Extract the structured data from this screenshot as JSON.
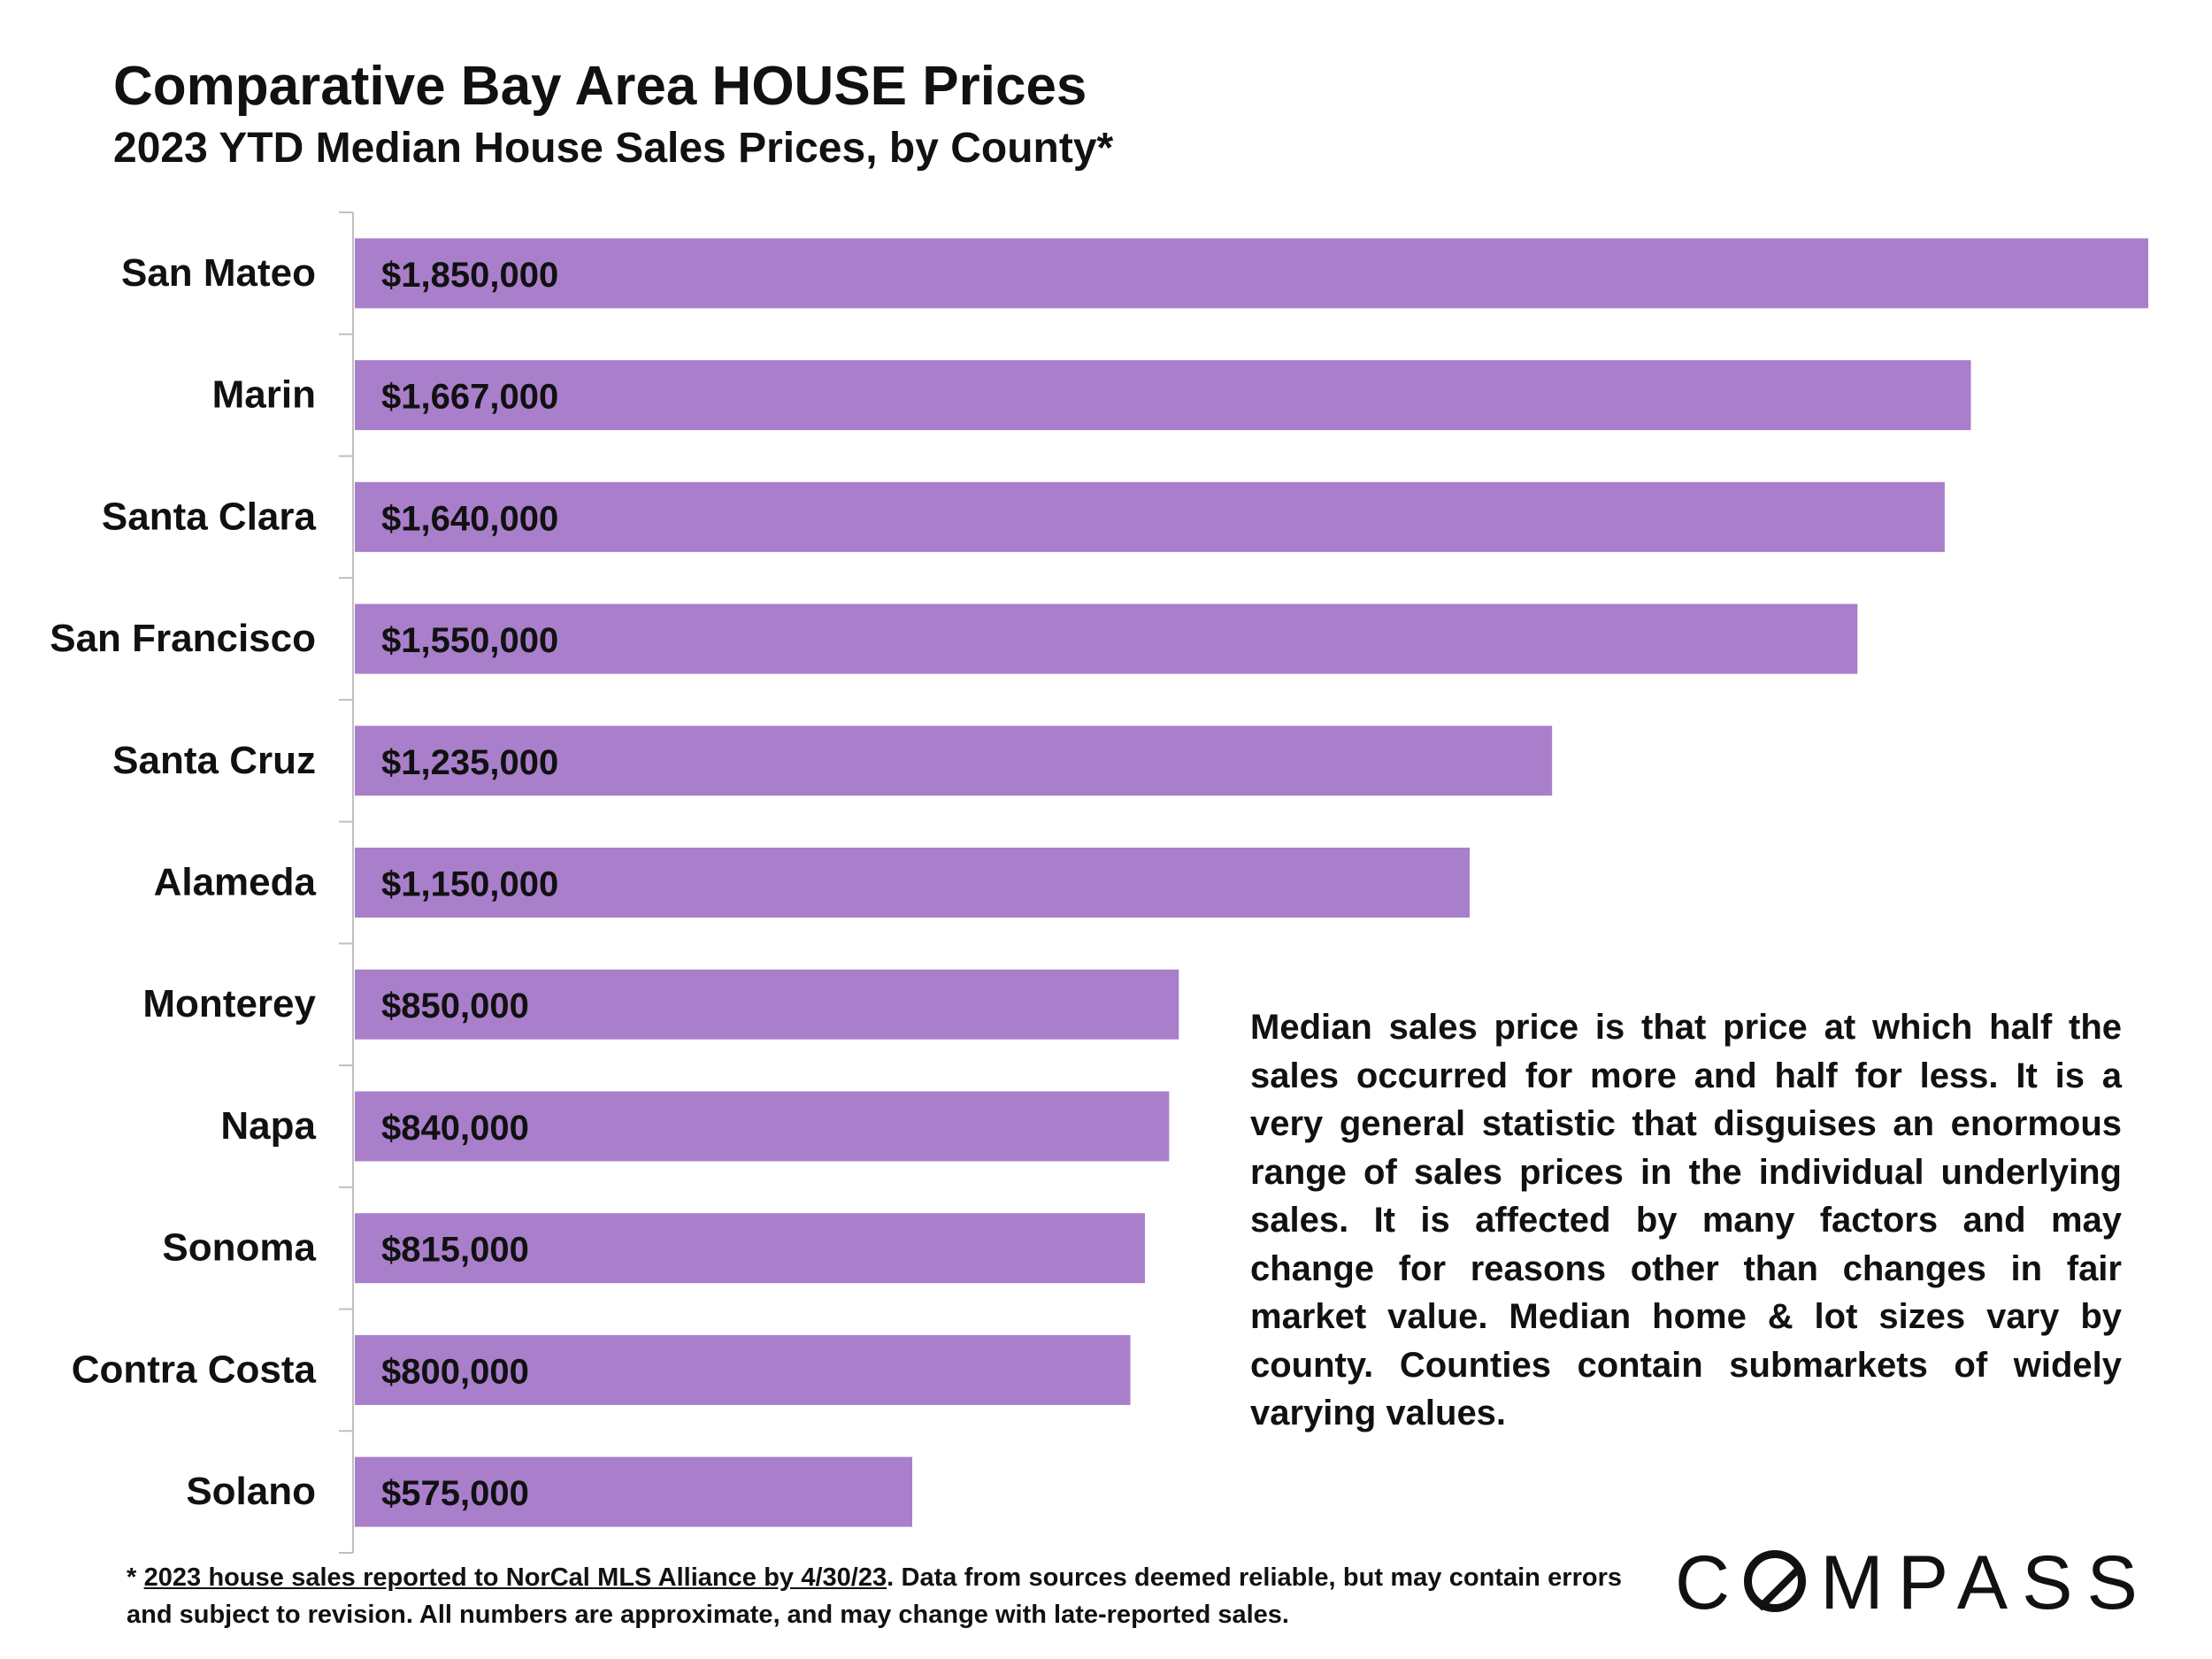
{
  "colors": {
    "bar": "#A97FCB",
    "text": "#111111",
    "axis": "#BFBFBF"
  },
  "chart_data": {
    "type": "bar",
    "orientation": "horizontal",
    "title": "Comparative Bay Area HOUSE Prices",
    "subtitle": "2023 YTD Median House Sales Prices, by County*",
    "xlabel": "",
    "ylabel": "",
    "xlim": [
      0,
      1850000
    ],
    "grid": false,
    "legend": "none",
    "categories": [
      "San Mateo",
      "Marin",
      "Santa Clara",
      "San Francisco",
      "Santa Cruz",
      "Alameda",
      "Monterey",
      "Napa",
      "Sonoma",
      "Contra Costa",
      "Solano"
    ],
    "values": [
      1850000,
      1667000,
      1640000,
      1550000,
      1235000,
      1150000,
      850000,
      840000,
      815000,
      800000,
      575000
    ],
    "data_labels": [
      "$1,850,000",
      "$1,667,000",
      "$1,640,000",
      "$1,550,000",
      "$1,235,000",
      "$1,150,000",
      "$850,000",
      "$840,000",
      "$815,000",
      "$800,000",
      "$575,000"
    ]
  },
  "note": "Median sales price is that price at which half the sales occurred for more and half for less. It is a very general statistic that disguises an enormous range of sales prices in the individual underlying sales. It is affected by many factors and may change for reasons other than changes in fair market value. Median home & lot sizes vary by county. Counties contain submarkets of widely varying values.",
  "footnote": {
    "prefix": "* ",
    "source_link": "2023 house sales reported to NorCal MLS Alliance by 4/30/23",
    "rest": ". Data from sources deemed reliable, but may contain errors and subject to revision. All numbers are approximate, and may change with late-reported sales."
  },
  "logo": {
    "text": "COMPASS",
    "first": "C",
    "rest": "MPASS"
  }
}
